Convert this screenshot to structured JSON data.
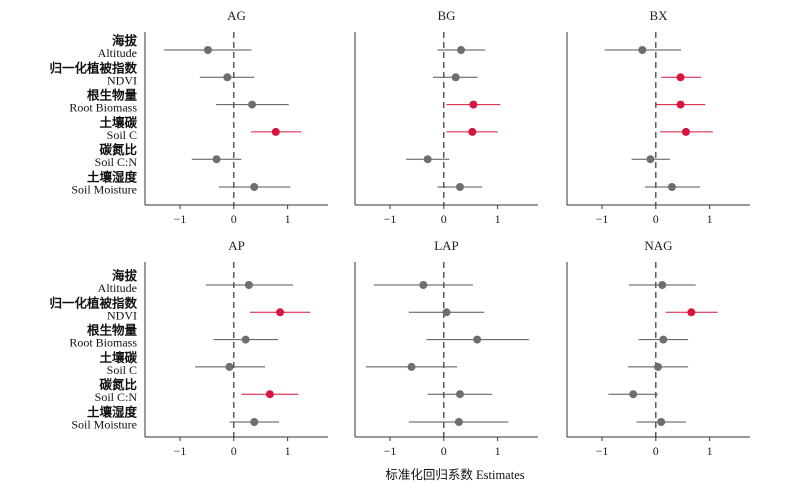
{
  "chart_data": {
    "type": "forest",
    "xlabel": "标准化回归系数  Estimates",
    "xlim": [
      -1.65,
      1.75
    ],
    "xticks": [
      -1,
      0,
      1
    ],
    "reference_line": 0,
    "predictors": [
      {
        "cn": "海拔",
        "en": "Altitude"
      },
      {
        "cn": "归一化植被指数",
        "en": "NDVI"
      },
      {
        "cn": "根生物量",
        "en": "Root Biomass"
      },
      {
        "cn": "土壤碳",
        "en": "Soil C"
      },
      {
        "cn": "碳氮比",
        "en": "Soil C:N"
      },
      {
        "cn": "土壤湿度",
        "en": "Soil Moisture"
      }
    ],
    "colors": {
      "significant": "#d6163e",
      "nonsignificant": "#6e6e6e",
      "line": "#333333"
    },
    "panels": [
      {
        "title": "AG",
        "rows": [
          {
            "est": -0.48,
            "lo": -1.3,
            "hi": 0.33,
            "sig": false
          },
          {
            "est": -0.12,
            "lo": -0.63,
            "hi": 0.38,
            "sig": false
          },
          {
            "est": 0.34,
            "lo": -0.33,
            "hi": 1.02,
            "sig": false
          },
          {
            "est": 0.78,
            "lo": 0.32,
            "hi": 1.25,
            "sig": true
          },
          {
            "est": -0.32,
            "lo": -0.78,
            "hi": 0.14,
            "sig": false
          },
          {
            "est": 0.38,
            "lo": -0.28,
            "hi": 1.05,
            "sig": false
          }
        ]
      },
      {
        "title": "BG",
        "rows": [
          {
            "est": 0.32,
            "lo": -0.12,
            "hi": 0.77,
            "sig": false
          },
          {
            "est": 0.22,
            "lo": -0.2,
            "hi": 0.63,
            "sig": false
          },
          {
            "est": 0.55,
            "lo": 0.05,
            "hi": 1.05,
            "sig": true
          },
          {
            "est": 0.53,
            "lo": 0.05,
            "hi": 1.0,
            "sig": true
          },
          {
            "est": -0.3,
            "lo": -0.7,
            "hi": 0.1,
            "sig": false
          },
          {
            "est": 0.3,
            "lo": -0.12,
            "hi": 0.71,
            "sig": false
          }
        ]
      },
      {
        "title": "BX",
        "rows": [
          {
            "est": -0.25,
            "lo": -0.95,
            "hi": 0.47,
            "sig": false
          },
          {
            "est": 0.46,
            "lo": 0.1,
            "hi": 0.84,
            "sig": true
          },
          {
            "est": 0.46,
            "lo": 0.0,
            "hi": 0.92,
            "sig": true
          },
          {
            "est": 0.56,
            "lo": 0.08,
            "hi": 1.06,
            "sig": true
          },
          {
            "est": -0.1,
            "lo": -0.45,
            "hi": 0.26,
            "sig": false
          },
          {
            "est": 0.3,
            "lo": -0.2,
            "hi": 0.82,
            "sig": false
          }
        ]
      },
      {
        "title": "AP",
        "rows": [
          {
            "est": 0.28,
            "lo": -0.52,
            "hi": 1.1,
            "sig": false
          },
          {
            "est": 0.86,
            "lo": 0.3,
            "hi": 1.42,
            "sig": true
          },
          {
            "est": 0.22,
            "lo": -0.38,
            "hi": 0.82,
            "sig": false
          },
          {
            "est": -0.08,
            "lo": -0.72,
            "hi": 0.58,
            "sig": false
          },
          {
            "est": 0.67,
            "lo": 0.14,
            "hi": 1.2,
            "sig": true
          },
          {
            "est": 0.38,
            "lo": -0.08,
            "hi": 0.84,
            "sig": false
          }
        ]
      },
      {
        "title": "LAP",
        "rows": [
          {
            "est": -0.38,
            "lo": -1.3,
            "hi": 0.54,
            "sig": false
          },
          {
            "est": 0.05,
            "lo": -0.65,
            "hi": 0.75,
            "sig": false
          },
          {
            "est": 0.62,
            "lo": -0.32,
            "hi": 1.58,
            "sig": false
          },
          {
            "est": -0.6,
            "lo": -1.45,
            "hi": 0.25,
            "sig": false
          },
          {
            "est": 0.3,
            "lo": -0.3,
            "hi": 0.9,
            "sig": false
          },
          {
            "est": 0.28,
            "lo": -0.65,
            "hi": 1.2,
            "sig": false
          }
        ]
      },
      {
        "title": "NAG",
        "rows": [
          {
            "est": 0.12,
            "lo": -0.5,
            "hi": 0.74,
            "sig": false
          },
          {
            "est": 0.66,
            "lo": 0.18,
            "hi": 1.15,
            "sig": true
          },
          {
            "est": 0.14,
            "lo": -0.32,
            "hi": 0.6,
            "sig": false
          },
          {
            "est": 0.04,
            "lo": -0.52,
            "hi": 0.6,
            "sig": false
          },
          {
            "est": -0.42,
            "lo": -0.88,
            "hi": 0.04,
            "sig": false
          },
          {
            "est": 0.1,
            "lo": -0.36,
            "hi": 0.56,
            "sig": false
          }
        ]
      }
    ]
  }
}
